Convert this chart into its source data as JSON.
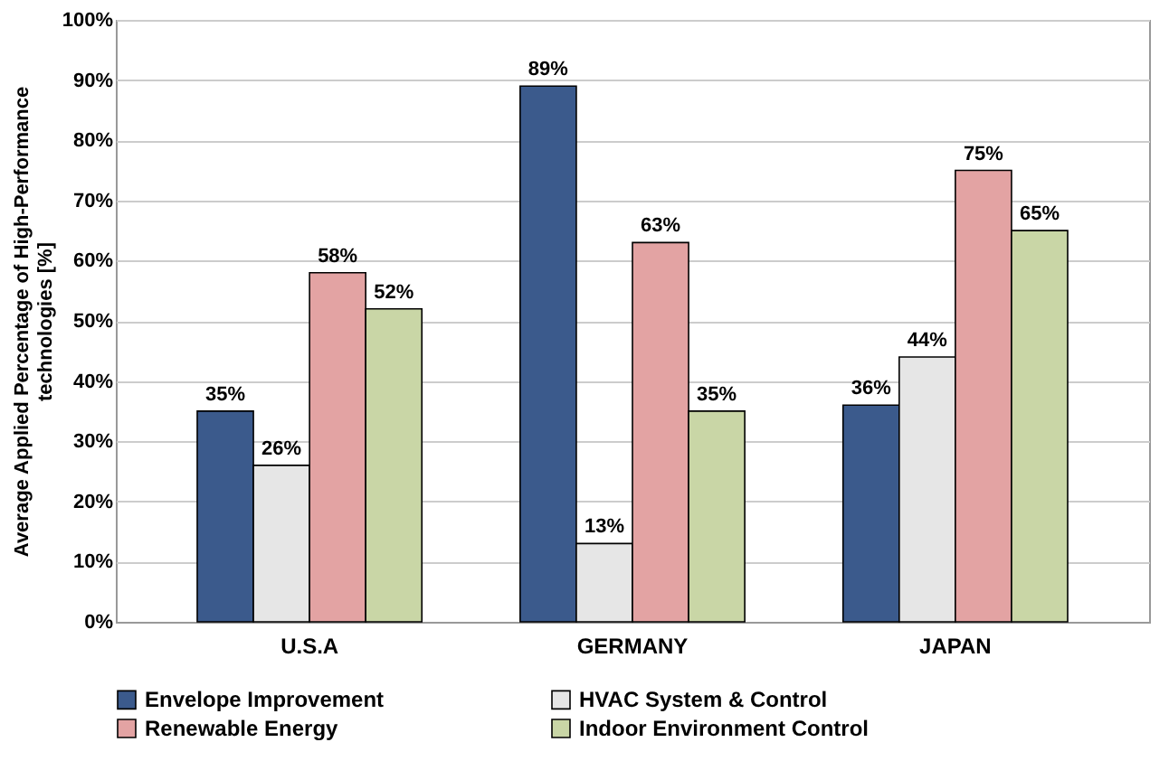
{
  "chart_data": {
    "type": "bar",
    "ylabel": "Average Applied Percentage of High-Performance technologies [%]",
    "categories": [
      "U.S.A",
      "GERMANY",
      "JAPAN"
    ],
    "series": [
      {
        "name": "Envelope Improvement",
        "color": "#3b5a8c",
        "values": [
          35,
          89,
          36
        ],
        "value_labels": [
          "35%",
          "89%",
          "36%"
        ]
      },
      {
        "name": "HVAC System & Control",
        "color": "#e6e6e6",
        "values": [
          26,
          13,
          44
        ],
        "value_labels": [
          "26%",
          "13%",
          "44%"
        ]
      },
      {
        "name": "Renewable Energy",
        "color": "#e3a3a3",
        "values": [
          58,
          63,
          75
        ],
        "value_labels": [
          "58%",
          "63%",
          "75%"
        ]
      },
      {
        "name": "Indoor Environment Control",
        "color": "#c9d6a6",
        "values": [
          52,
          35,
          65
        ],
        "value_labels": [
          "52%",
          "35%",
          "65%"
        ]
      }
    ],
    "ylim": [
      0,
      100
    ],
    "yticks": [
      {
        "value": 0,
        "label": "0%"
      },
      {
        "value": 10,
        "label": "10%"
      },
      {
        "value": 20,
        "label": "20%"
      },
      {
        "value": 30,
        "label": "30%"
      },
      {
        "value": 40,
        "label": "40%"
      },
      {
        "value": 50,
        "label": "50%"
      },
      {
        "value": 60,
        "label": "60%"
      },
      {
        "value": 70,
        "label": "70%"
      },
      {
        "value": 80,
        "label": "80%"
      },
      {
        "value": 90,
        "label": "90%"
      },
      {
        "value": 100,
        "label": "100%"
      }
    ],
    "grid": "y",
    "legend": "bottom"
  }
}
